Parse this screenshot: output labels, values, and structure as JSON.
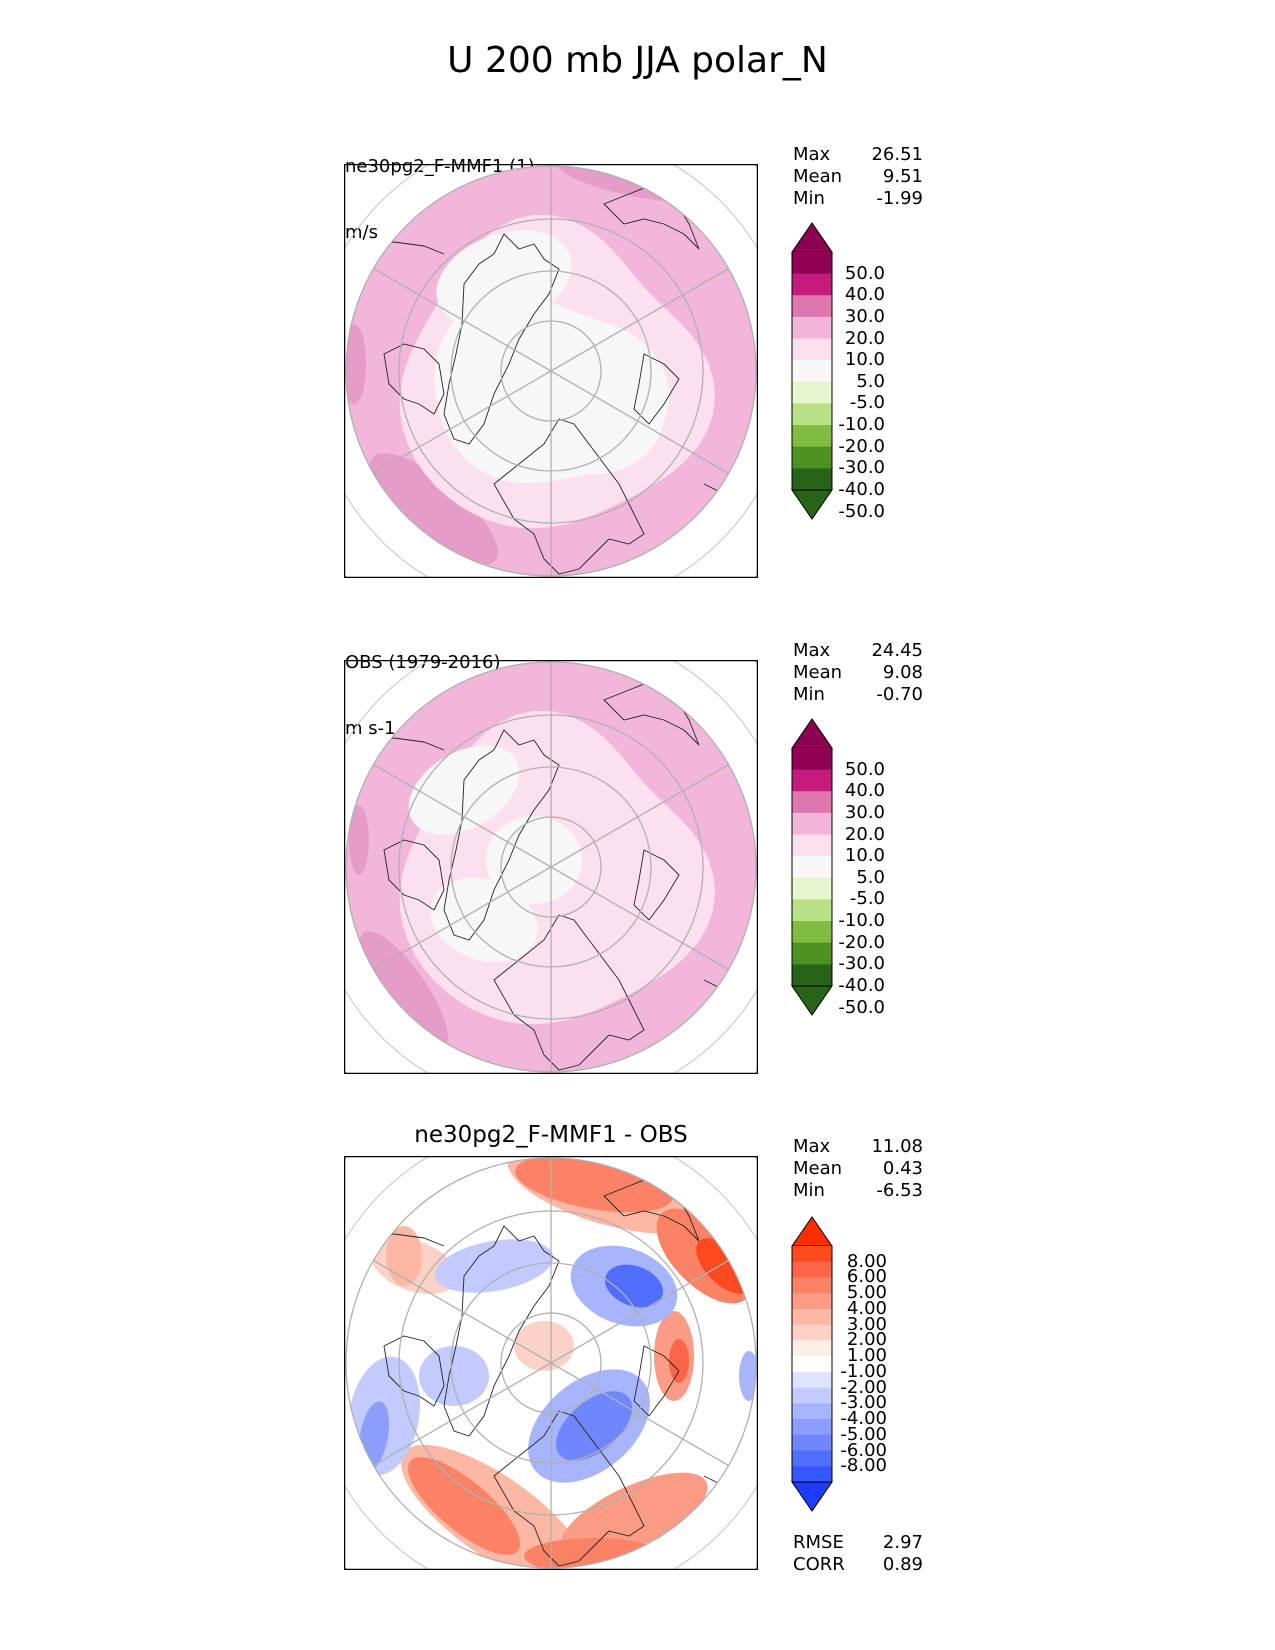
{
  "figure": {
    "title": "U 200 mb JJA polar_N"
  },
  "chart_data": [
    {
      "type": "heatmap",
      "projection": "north polar stereographic",
      "title_lines": [
        "ne30pg2_F-MMF1 (1)",
        "m/s"
      ],
      "stats": [
        {
          "label": "Max",
          "value": "26.51"
        },
        {
          "label": "Mean",
          "value": "9.51"
        },
        {
          "label": "Min",
          "value": "-1.99"
        }
      ],
      "colorbar": {
        "levels": [
          "50.0",
          "40.0",
          "30.0",
          "20.0",
          "10.0",
          "5.0",
          "-5.0",
          "-10.0",
          "-20.0",
          "-30.0",
          "-40.0",
          "-50.0"
        ],
        "colors": [
          "#8e0152",
          "#c51b7d",
          "#de77ae",
          "#f1b6da",
          "#fde0ef",
          "#f7f7f7",
          "#e6f5d0",
          "#b8e186",
          "#7fbc41",
          "#4d9221",
          "#276419"
        ],
        "extend": "both",
        "top_color": "#8e0152",
        "bottom_color": "#276419"
      },
      "field_colors": {
        "outer": "#f1b6da",
        "mid": "#fde0ef",
        "inner": "#f7f7f7",
        "strong": "#e69cc8"
      }
    },
    {
      "type": "heatmap",
      "projection": "north polar stereographic",
      "title_lines": [
        "OBS (1979-2016)",
        "m s-1"
      ],
      "stats": [
        {
          "label": "Max",
          "value": "24.45"
        },
        {
          "label": "Mean",
          "value": "9.08"
        },
        {
          "label": "Min",
          "value": "-0.70"
        }
      ],
      "colorbar": {
        "levels": [
          "50.0",
          "40.0",
          "30.0",
          "20.0",
          "10.0",
          "5.0",
          "-5.0",
          "-10.0",
          "-20.0",
          "-30.0",
          "-40.0",
          "-50.0"
        ],
        "colors": [
          "#8e0152",
          "#c51b7d",
          "#de77ae",
          "#f1b6da",
          "#fde0ef",
          "#f7f7f7",
          "#e6f5d0",
          "#b8e186",
          "#7fbc41",
          "#4d9221",
          "#276419"
        ],
        "extend": "both",
        "top_color": "#8e0152",
        "bottom_color": "#276419"
      },
      "field_colors": {
        "outer": "#f1b6da",
        "mid": "#fde0ef",
        "inner": "#f7f7f7",
        "strong": "#e69cc8"
      }
    },
    {
      "type": "heatmap",
      "projection": "north polar stereographic",
      "title": "ne30pg2_F-MMF1 - OBS",
      "stats": [
        {
          "label": "Max",
          "value": "11.08"
        },
        {
          "label": "Mean",
          "value": "0.43"
        },
        {
          "label": "Min",
          "value": "-6.53"
        }
      ],
      "colorbar": {
        "levels": [
          "8.00",
          "6.00",
          "5.00",
          "4.00",
          "3.00",
          "2.00",
          "1.00",
          "-1.00",
          "-2.00",
          "-3.00",
          "-4.00",
          "-5.00",
          "-6.00",
          "-8.00"
        ],
        "colors": [
          "#fe4a1f",
          "#fc6648",
          "#fb8265",
          "#fc9c85",
          "#fdb7a5",
          "#fdd2c6",
          "#feeee8",
          "#ffffff",
          "#dfe3fe",
          "#c3cbfe",
          "#a7b4fe",
          "#8c9dfe",
          "#7086fd",
          "#526efd",
          "#3456fd"
        ],
        "extend": "both",
        "top_color": "#ff2e00",
        "bottom_color": "#1e3cff"
      },
      "extra_stats": [
        {
          "label": "RMSE",
          "value": "2.97"
        },
        {
          "label": "CORR",
          "value": "0.89"
        }
      ]
    }
  ]
}
